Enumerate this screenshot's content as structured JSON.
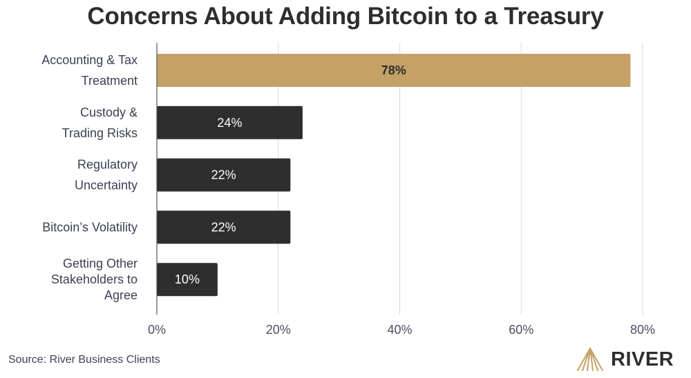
{
  "chart_data": {
    "type": "bar",
    "orientation": "horizontal",
    "title": "Concerns About Adding Bitcoin to a Treasury",
    "categories": [
      [
        "Accounting & Tax",
        "Treatment"
      ],
      [
        "Custody &",
        "Trading Risks"
      ],
      [
        "Regulatory",
        "Uncertainty"
      ],
      [
        "Bitcoin’s Volatility"
      ],
      [
        "Getting Other",
        "Stakeholders to",
        "Agree"
      ]
    ],
    "values": [
      78,
      24,
      22,
      22,
      10
    ],
    "value_labels": [
      "78%",
      "24%",
      "22%",
      "22%",
      "10%"
    ],
    "highlight_index": 0,
    "xlim": [
      0,
      80
    ],
    "xticks": [
      0,
      20,
      40,
      60,
      80
    ],
    "xtick_labels": [
      "0%",
      "20%",
      "40%",
      "60%",
      "80%"
    ],
    "grid": true,
    "xlabel": "",
    "ylabel": "",
    "colors": {
      "highlight": "#c4a166",
      "bar": "#2e2e2e",
      "grid": "#d9d9d9"
    }
  },
  "footer": {
    "source": "Source: River Business Clients",
    "brand": "RIVER"
  }
}
